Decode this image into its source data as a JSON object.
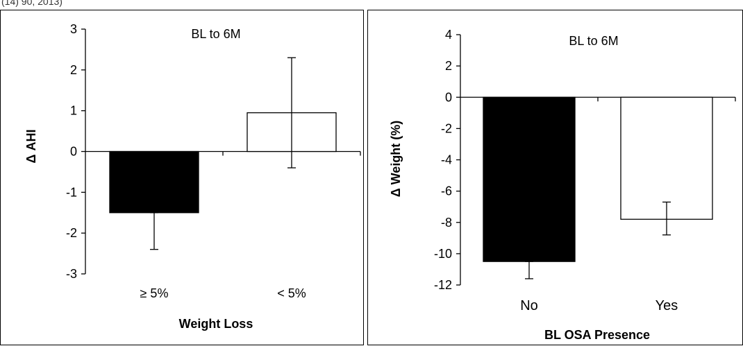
{
  "top_caption": "(14) 90, 2013)",
  "chart_data": [
    {
      "type": "bar",
      "title": "BL to 6M",
      "xlabel": "Weight Loss",
      "ylabel": "Δ AHI",
      "categories": [
        "≥ 5%",
        "< 5%"
      ],
      "values": [
        -1.5,
        0.95
      ],
      "error_low": [
        -2.4,
        -0.4
      ],
      "error_high": [
        -1.5,
        2.3
      ],
      "bar_colors": [
        "#000000",
        "#ffffff"
      ],
      "ylim": [
        -3,
        3
      ],
      "yticks": [
        "3",
        "2",
        "1",
        "0",
        "-1",
        "-2",
        "-3"
      ],
      "ytick_values": [
        3,
        2,
        1,
        0,
        -1,
        -2,
        -3
      ],
      "grid": false,
      "legend": "none"
    },
    {
      "type": "bar",
      "title": "BL to 6M",
      "xlabel": "BL OSA Presence",
      "ylabel": "Δ Weight (%)",
      "categories": [
        "No",
        "Yes"
      ],
      "values": [
        -10.5,
        -7.8
      ],
      "error_low": [
        -11.6,
        -8.8
      ],
      "error_high": [
        -10.5,
        -6.7
      ],
      "bar_colors": [
        "#000000",
        "#ffffff"
      ],
      "ylim": [
        -12,
        4
      ],
      "yticks": [
        "4",
        "2",
        "0",
        "-2",
        "-4",
        "-6",
        "-8",
        "-10",
        "-12"
      ],
      "ytick_values": [
        4,
        2,
        0,
        -2,
        -4,
        -6,
        -8,
        -10,
        -12
      ],
      "grid": false,
      "legend": "none"
    }
  ]
}
